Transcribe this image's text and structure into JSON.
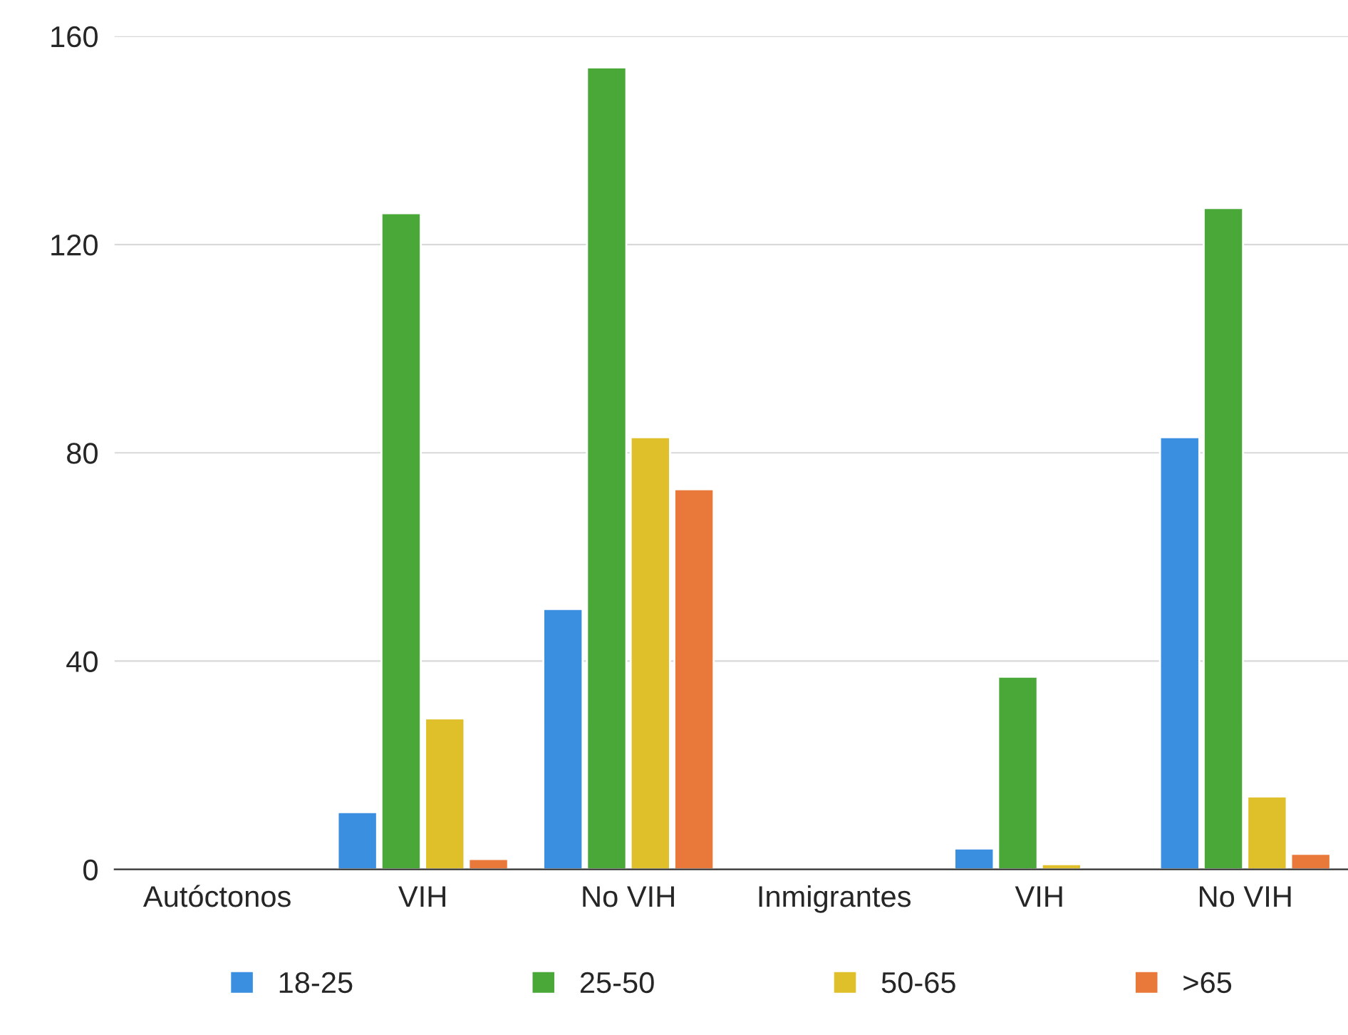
{
  "chart_data": {
    "type": "bar",
    "categories": [
      "Autóctonos",
      "VIH",
      "No VIH",
      "Inmigrantes",
      "VIH",
      "No VIH"
    ],
    "series": [
      {
        "name": "18-25",
        "color": "#3a8fe0",
        "values": [
          null,
          11,
          50,
          null,
          4,
          83
        ]
      },
      {
        "name": "25-50",
        "color": "#4aa838",
        "values": [
          null,
          126,
          154,
          null,
          37,
          127
        ]
      },
      {
        "name": "50-65",
        "color": "#e0c02a",
        "values": [
          null,
          29,
          83,
          null,
          1,
          14
        ]
      },
      {
        "name": ">65",
        "color": "#e8793a",
        "values": [
          null,
          2,
          73,
          null,
          null,
          3
        ]
      }
    ],
    "ylim": [
      0,
      160
    ],
    "yticks": [
      0,
      40,
      80,
      120,
      160
    ],
    "grid": "y",
    "legend": "bottom"
  }
}
